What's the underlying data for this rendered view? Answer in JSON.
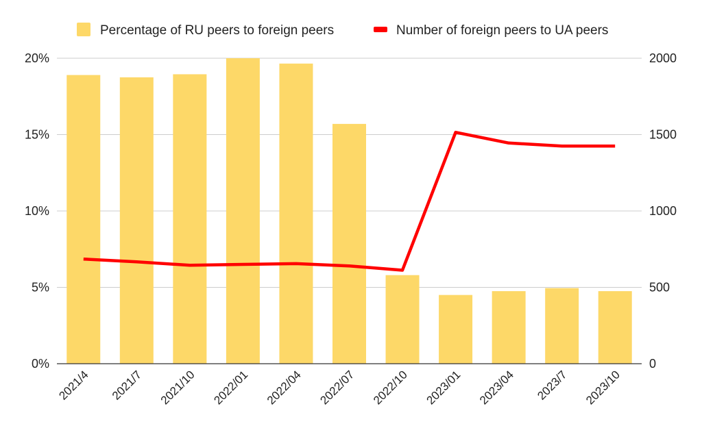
{
  "chart_data": {
    "type": "bar",
    "categories": [
      "2021/4",
      "2021/7",
      "2021/10",
      "2022/01",
      "2022/04",
      "2022/07",
      "2022/10",
      "2023/01",
      "2023/04",
      "2023/7",
      "2023/10"
    ],
    "series": [
      {
        "name": "Percentage of RU peers to foreign peers",
        "type": "bar",
        "axis": "left",
        "color": "#FDD868",
        "values": [
          18.9,
          18.75,
          18.95,
          20.0,
          19.65,
          15.7,
          5.8,
          4.5,
          4.75,
          4.95,
          4.75
        ]
      },
      {
        "name": "Number of foreign peers to UA peers",
        "type": "line",
        "axis": "right",
        "color": "#FF0000",
        "values": [
          685,
          667,
          645,
          650,
          655,
          640,
          612,
          1515,
          1445,
          1425,
          1425
        ]
      }
    ],
    "y_left": {
      "ylim": [
        0,
        20
      ],
      "ticks": [
        0,
        5,
        10,
        15,
        20
      ],
      "tick_labels": [
        "0%",
        "5%",
        "10%",
        "15%",
        "20%"
      ]
    },
    "y_right": {
      "ylim": [
        0,
        2000
      ],
      "ticks": [
        0,
        500,
        1000,
        1500,
        2000
      ],
      "tick_labels": [
        "0",
        "500",
        "1000",
        "1500",
        "2000"
      ]
    },
    "grid": true,
    "legend_position": "top"
  }
}
